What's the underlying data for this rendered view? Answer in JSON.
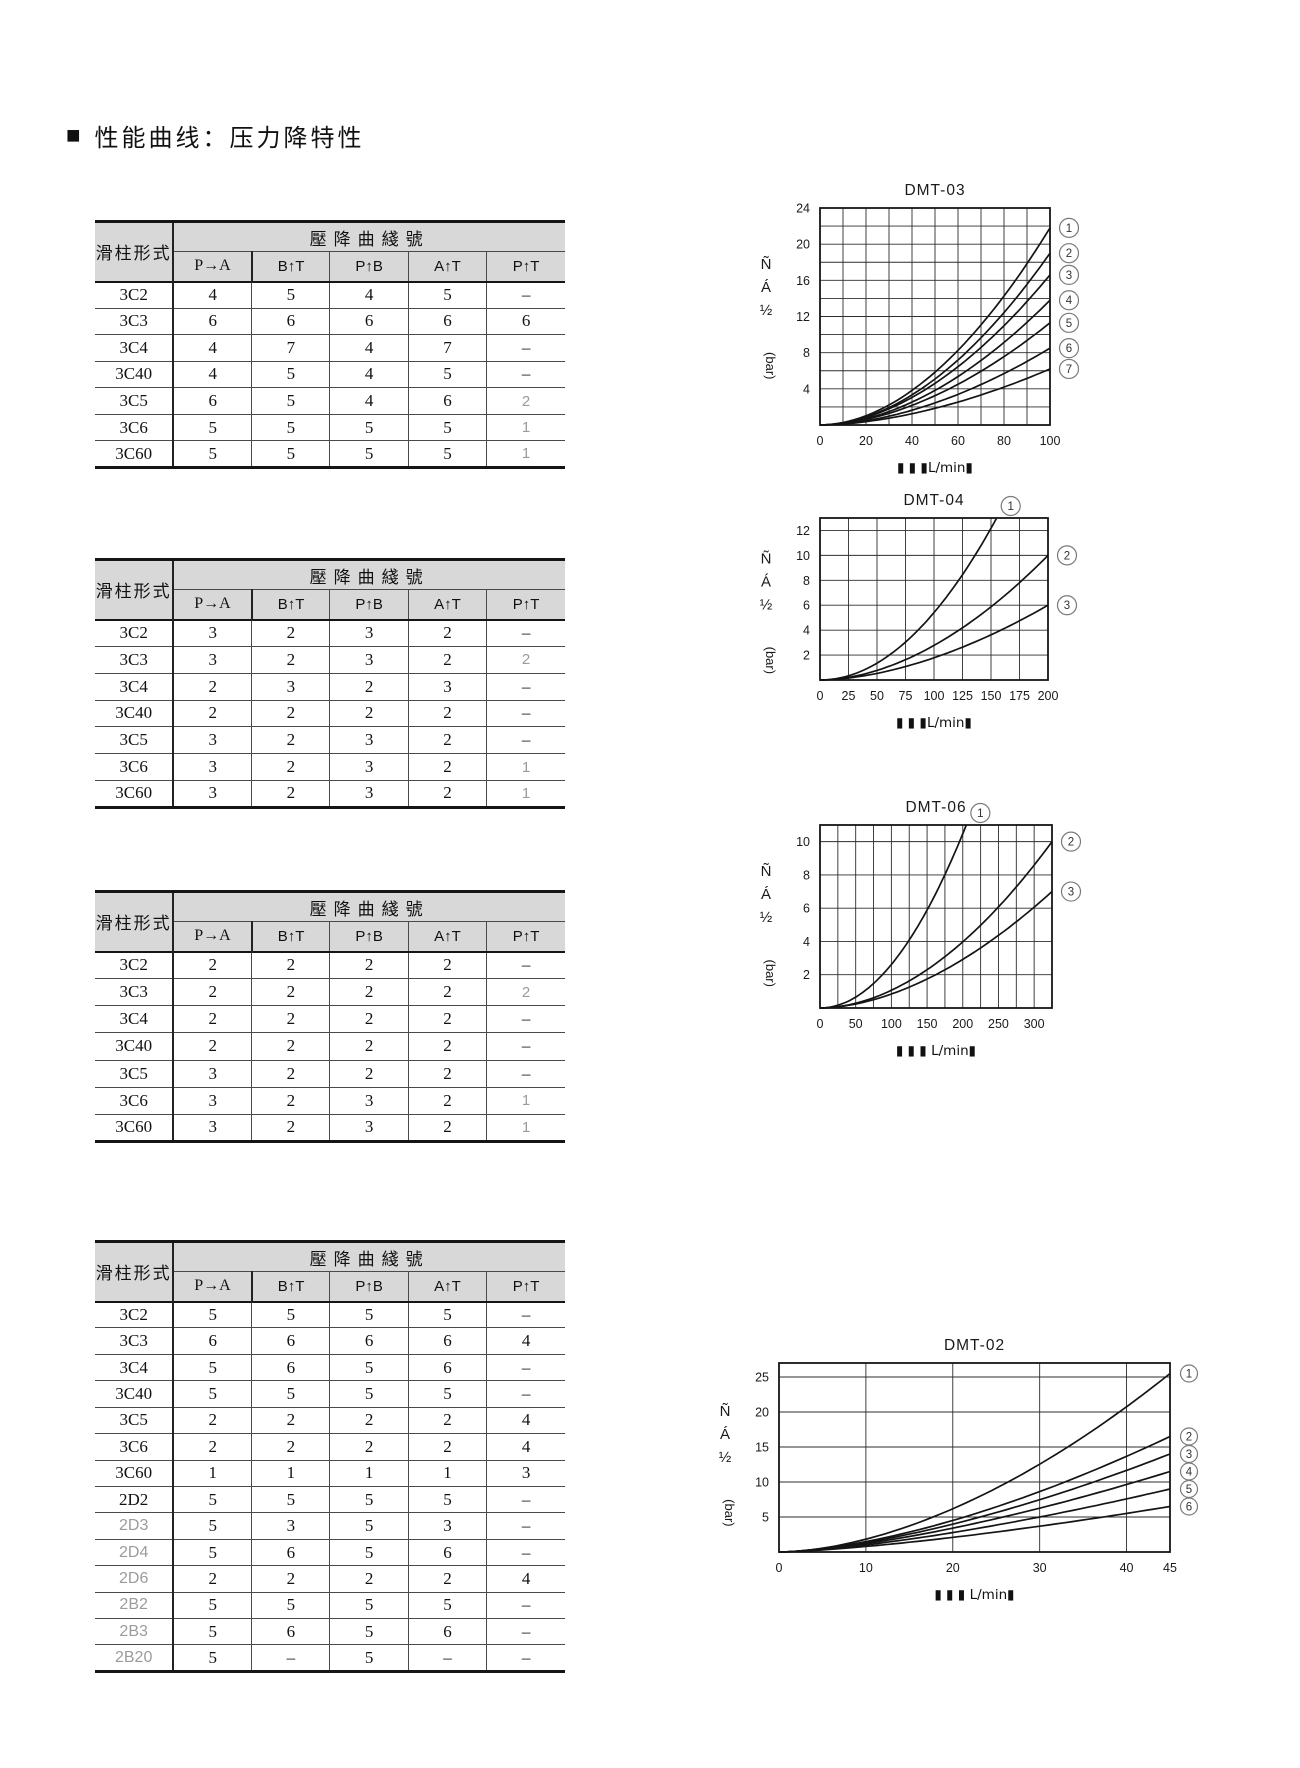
{
  "page": {
    "title_marker": "■",
    "title": "性能曲线：压力降特性"
  },
  "table_headers": {
    "spool": "滑柱形式",
    "group": "壓降曲綫號",
    "cols": [
      "P→A",
      "B↑T",
      "P↑B",
      "A↑T",
      "P↑T"
    ]
  },
  "tables": [
    {
      "chart": "DMT-03",
      "rows": [
        {
          "spool": "3C2",
          "values": [
            "4",
            "5",
            "4",
            "5",
            "–"
          ]
        },
        {
          "spool": "3C3",
          "values": [
            "6",
            "6",
            "6",
            "6",
            "6"
          ]
        },
        {
          "spool": "3C4",
          "values": [
            "4",
            "7",
            "4",
            "7",
            "–"
          ]
        },
        {
          "spool": "3C40",
          "values": [
            "4",
            "5",
            "4",
            "5",
            "–"
          ]
        },
        {
          "spool": "3C5",
          "values": [
            "6",
            "5",
            "4",
            "6",
            "2"
          ],
          "light_cols": [
            4
          ]
        },
        {
          "spool": "3C6",
          "values": [
            "5",
            "5",
            "5",
            "5",
            "1"
          ],
          "light_cols": [
            4
          ]
        },
        {
          "spool": "3C60",
          "values": [
            "5",
            "5",
            "5",
            "5",
            "1"
          ],
          "light_cols": [
            4
          ]
        }
      ]
    },
    {
      "chart": "DMT-04",
      "rows": [
        {
          "spool": "3C2",
          "values": [
            "3",
            "2",
            "3",
            "2",
            "–"
          ]
        },
        {
          "spool": "3C3",
          "values": [
            "3",
            "2",
            "3",
            "2",
            "2"
          ],
          "light_cols": [
            4
          ]
        },
        {
          "spool": "3C4",
          "values": [
            "2",
            "3",
            "2",
            "3",
            "–"
          ]
        },
        {
          "spool": "3C40",
          "values": [
            "2",
            "2",
            "2",
            "2",
            "–"
          ]
        },
        {
          "spool": "3C5",
          "values": [
            "3",
            "2",
            "3",
            "2",
            "–"
          ]
        },
        {
          "spool": "3C6",
          "values": [
            "3",
            "2",
            "3",
            "2",
            "1"
          ],
          "light_cols": [
            4
          ]
        },
        {
          "spool": "3C60",
          "values": [
            "3",
            "2",
            "3",
            "2",
            "1"
          ],
          "light_cols": [
            4
          ]
        }
      ]
    },
    {
      "chart": "DMT-06",
      "rows": [
        {
          "spool": "3C2",
          "values": [
            "2",
            "2",
            "2",
            "2",
            "–"
          ]
        },
        {
          "spool": "3C3",
          "values": [
            "2",
            "2",
            "2",
            "2",
            "2"
          ],
          "light_cols": [
            4
          ]
        },
        {
          "spool": "3C4",
          "values": [
            "2",
            "2",
            "2",
            "2",
            "–"
          ]
        },
        {
          "spool": "3C40",
          "values": [
            "2",
            "2",
            "2",
            "2",
            "–"
          ]
        },
        {
          "spool": "3C5",
          "values": [
            "3",
            "2",
            "2",
            "2",
            "–"
          ]
        },
        {
          "spool": "3C6",
          "values": [
            "3",
            "2",
            "3",
            "2",
            "1"
          ],
          "light_cols": [
            4
          ]
        },
        {
          "spool": "3C60",
          "values": [
            "3",
            "2",
            "3",
            "2",
            "1"
          ],
          "light_cols": [
            4
          ]
        }
      ]
    },
    {
      "chart": "DMT-02",
      "rows": [
        {
          "spool": "3C2",
          "values": [
            "5",
            "5",
            "5",
            "5",
            "–"
          ]
        },
        {
          "spool": "3C3",
          "values": [
            "6",
            "6",
            "6",
            "6",
            "4"
          ]
        },
        {
          "spool": "3C4",
          "values": [
            "5",
            "6",
            "5",
            "6",
            "–"
          ]
        },
        {
          "spool": "3C40",
          "values": [
            "5",
            "5",
            "5",
            "5",
            "–"
          ]
        },
        {
          "spool": "3C5",
          "values": [
            "2",
            "2",
            "2",
            "2",
            "4"
          ]
        },
        {
          "spool": "3C6",
          "values": [
            "2",
            "2",
            "2",
            "2",
            "4"
          ]
        },
        {
          "spool": "3C60",
          "values": [
            "1",
            "1",
            "1",
            "1",
            "3"
          ]
        },
        {
          "spool": "2D2",
          "values": [
            "5",
            "5",
            "5",
            "5",
            "–"
          ]
        },
        {
          "spool": "2D3",
          "values": [
            "5",
            "3",
            "5",
            "3",
            "–"
          ],
          "light_spool": true
        },
        {
          "spool": "2D4",
          "values": [
            "5",
            "6",
            "5",
            "6",
            "–"
          ],
          "light_spool": true
        },
        {
          "spool": "2D6",
          "values": [
            "2",
            "2",
            "2",
            "2",
            "4"
          ],
          "light_spool": true
        },
        {
          "spool": "2B2",
          "values": [
            "5",
            "5",
            "5",
            "5",
            "–"
          ],
          "light_spool": true
        },
        {
          "spool": "2B3",
          "values": [
            "5",
            "6",
            "5",
            "6",
            "–"
          ],
          "light_spool": true
        },
        {
          "spool": "2B20",
          "values": [
            "5",
            "–",
            "5",
            "–",
            "–"
          ],
          "light_spool": true
        }
      ]
    }
  ],
  "chart_data": [
    {
      "id": "dmt-03",
      "type": "line",
      "title": "DMT-03",
      "xlabel": "▮ ▮ ▮L/min▮",
      "ylabel_stack": [
        "Ñ",
        "Á",
        "½"
      ],
      "ylabel_rotated": "(bar)",
      "x_max": 100,
      "y_max": 24,
      "x_grid_step": 10,
      "y_grid_step": 2,
      "x_ticks": [
        0,
        20,
        40,
        60,
        80,
        100
      ],
      "y_ticks": [
        4,
        8,
        12,
        16,
        20,
        24
      ],
      "curves": [
        {
          "label": "1",
          "x_end": 100,
          "y_end": 21.8,
          "exp": 1.9,
          "label_pos": "right"
        },
        {
          "label": "2",
          "x_end": 100,
          "y_end": 19.0,
          "exp": 1.9,
          "label_pos": "right"
        },
        {
          "label": "3",
          "x_end": 100,
          "y_end": 16.6,
          "exp": 1.85,
          "label_pos": "right"
        },
        {
          "label": "4",
          "x_end": 100,
          "y_end": 13.8,
          "exp": 1.85,
          "label_pos": "right"
        },
        {
          "label": "5",
          "x_end": 100,
          "y_end": 11.3,
          "exp": 1.8,
          "label_pos": "right"
        },
        {
          "label": "6",
          "x_end": 100,
          "y_end": 8.5,
          "exp": 1.8,
          "label_pos": "right"
        },
        {
          "label": "7",
          "x_end": 100,
          "y_end": 6.2,
          "exp": 1.75,
          "label_pos": "right"
        }
      ]
    },
    {
      "id": "dmt-04",
      "type": "line",
      "title": "DMT-04",
      "xlabel": "▮ ▮ ▮L/min▮",
      "ylabel_stack": [
        "Ñ",
        "Á",
        "½"
      ],
      "ylabel_rotated": "(bar)",
      "x_max": 200,
      "y_max": 13,
      "x_grid_step": 25,
      "y_grid_step": 2,
      "x_ticks": [
        0,
        25,
        50,
        75,
        100,
        125,
        150,
        175,
        200
      ],
      "y_ticks": [
        2,
        4,
        6,
        8,
        10,
        12
      ],
      "curves": [
        {
          "label": "1",
          "x_end": 155,
          "y_end": 13,
          "exp": 2.0,
          "label_pos": "top"
        },
        {
          "label": "2",
          "x_end": 200,
          "y_end": 10,
          "exp": 1.85,
          "label_pos": "right"
        },
        {
          "label": "3",
          "x_end": 200,
          "y_end": 6,
          "exp": 1.75,
          "label_pos": "right"
        }
      ]
    },
    {
      "id": "dmt-06",
      "type": "line",
      "title": "DMT-06",
      "xlabel": "▮ ▮ ▮ L/min▮",
      "ylabel_stack": [
        "Ñ",
        "Á",
        "½"
      ],
      "ylabel_rotated": "(bar)",
      "x_max": 325,
      "y_max": 11,
      "x_grid_step": 25,
      "y_grid_step": 2,
      "x_ticks": [
        0,
        50,
        100,
        150,
        200,
        250,
        300
      ],
      "y_ticks": [
        2,
        4,
        6,
        8,
        10
      ],
      "curves": [
        {
          "label": "1",
          "x_end": 205,
          "y_end": 11,
          "exp": 2.0,
          "label_pos": "top"
        },
        {
          "label": "2",
          "x_end": 325,
          "y_end": 10,
          "exp": 1.9,
          "label_pos": "right"
        },
        {
          "label": "3",
          "x_end": 325,
          "y_end": 7,
          "exp": 1.8,
          "label_pos": "right"
        }
      ]
    },
    {
      "id": "dmt-02",
      "type": "line",
      "title": "DMT-02",
      "xlabel": "▮ ▮ ▮ L/min▮",
      "ylabel_stack": [
        "Ñ",
        "Á",
        "½"
      ],
      "ylabel_rotated": "(bar)",
      "x_max": 45,
      "y_max": 27,
      "x_grid_lines": [
        10,
        20,
        30,
        40
      ],
      "y_grid_lines": [
        5,
        10,
        15,
        20,
        25
      ],
      "x_ticks": [
        0,
        10,
        20,
        30,
        40,
        45
      ],
      "y_ticks": [
        5,
        10,
        15,
        20,
        25
      ],
      "curves": [
        {
          "label": "1",
          "x_end": 45,
          "y_end": 25.5,
          "exp": 1.75,
          "label_pos": "right"
        },
        {
          "label": "2",
          "x_end": 45,
          "y_end": 16.5,
          "exp": 1.6,
          "label_pos": "right"
        },
        {
          "label": "3",
          "x_end": 45,
          "y_end": 14.0,
          "exp": 1.55,
          "label_pos": "right"
        },
        {
          "label": "4",
          "x_end": 45,
          "y_end": 11.5,
          "exp": 1.5,
          "label_pos": "right"
        },
        {
          "label": "5",
          "x_end": 45,
          "y_end": 9.0,
          "exp": 1.45,
          "label_pos": "right"
        },
        {
          "label": "6",
          "x_end": 45,
          "y_end": 6.5,
          "exp": 1.4,
          "label_pos": "right"
        }
      ]
    }
  ]
}
